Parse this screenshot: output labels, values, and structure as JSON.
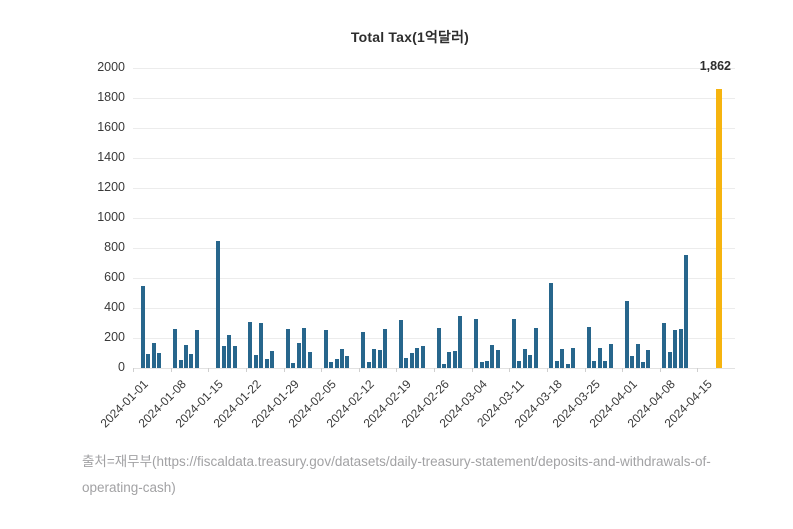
{
  "annotation": {
    "label": "1,862"
  },
  "source": {
    "lines": [
      "출처=재무부(https://fiscaldata.treasury.gov/datasets/daily-treasury-statement/deposits-and-withdrawals-of-",
      "operating-cash)"
    ]
  },
  "chart_data": {
    "type": "bar",
    "title": "Total Tax(1억달러)",
    "xlabel": "",
    "ylabel": "",
    "ylim": [
      0,
      2000
    ],
    "yticks": [
      0,
      200,
      400,
      600,
      800,
      1000,
      1200,
      1400,
      1600,
      1800,
      2000
    ],
    "grid": true,
    "legend": "none",
    "bar_color": "#27668c",
    "highlight_color": "#f6b40f",
    "annotation": {
      "text": "1,862",
      "target_week": "2024-04-15"
    },
    "weeks": [
      {
        "label": "2024-01-01",
        "start_slot": 1,
        "values": [
          545,
          95,
          170,
          100
        ]
      },
      {
        "label": "2024-01-08",
        "start_slot": 0,
        "values": [
          260,
          55,
          155,
          95,
          255
        ]
      },
      {
        "label": "2024-01-15",
        "start_slot": 1,
        "values": [
          845,
          150,
          218,
          145
        ]
      },
      {
        "label": "2024-01-22",
        "start_slot": 0,
        "values": [
          310,
          85,
          300,
          60,
          115
        ]
      },
      {
        "label": "2024-01-29",
        "start_slot": 0,
        "values": [
          260,
          35,
          165,
          265,
          105
        ]
      },
      {
        "label": "2024-02-05",
        "start_slot": 0,
        "values": [
          255,
          40,
          60,
          125,
          80
        ]
      },
      {
        "label": "2024-02-12",
        "start_slot": 0,
        "values": [
          240,
          40,
          130,
          120,
          260
        ]
      },
      {
        "label": "2024-02-19",
        "start_slot": 0,
        "values": [
          320,
          65,
          100,
          135,
          145
        ]
      },
      {
        "label": "2024-02-26",
        "start_slot": 0,
        "values": [
          270,
          30,
          105,
          115,
          350
        ]
      },
      {
        "label": "2024-03-04",
        "start_slot": 0,
        "values": [
          325,
          40,
          50,
          155,
          120
        ]
      },
      {
        "label": "2024-03-11",
        "start_slot": 0,
        "values": [
          325,
          45,
          125,
          90,
          270
        ]
      },
      {
        "label": "2024-03-18",
        "start_slot": 0,
        "values": [
          565,
          45,
          125,
          30,
          135
        ]
      },
      {
        "label": "2024-03-25",
        "start_slot": 0,
        "values": [
          275,
          45,
          135,
          50,
          160
        ]
      },
      {
        "label": "2024-04-01",
        "start_slot": 0,
        "values": [
          445,
          80,
          160,
          40,
          120
        ]
      },
      {
        "label": "2024-04-08",
        "start_slot": 0,
        "values": [
          300,
          105,
          255,
          260,
          755
        ]
      },
      {
        "label": "2024-04-15",
        "start_slot": 3,
        "values": [
          1862
        ],
        "highlight": true
      }
    ]
  }
}
